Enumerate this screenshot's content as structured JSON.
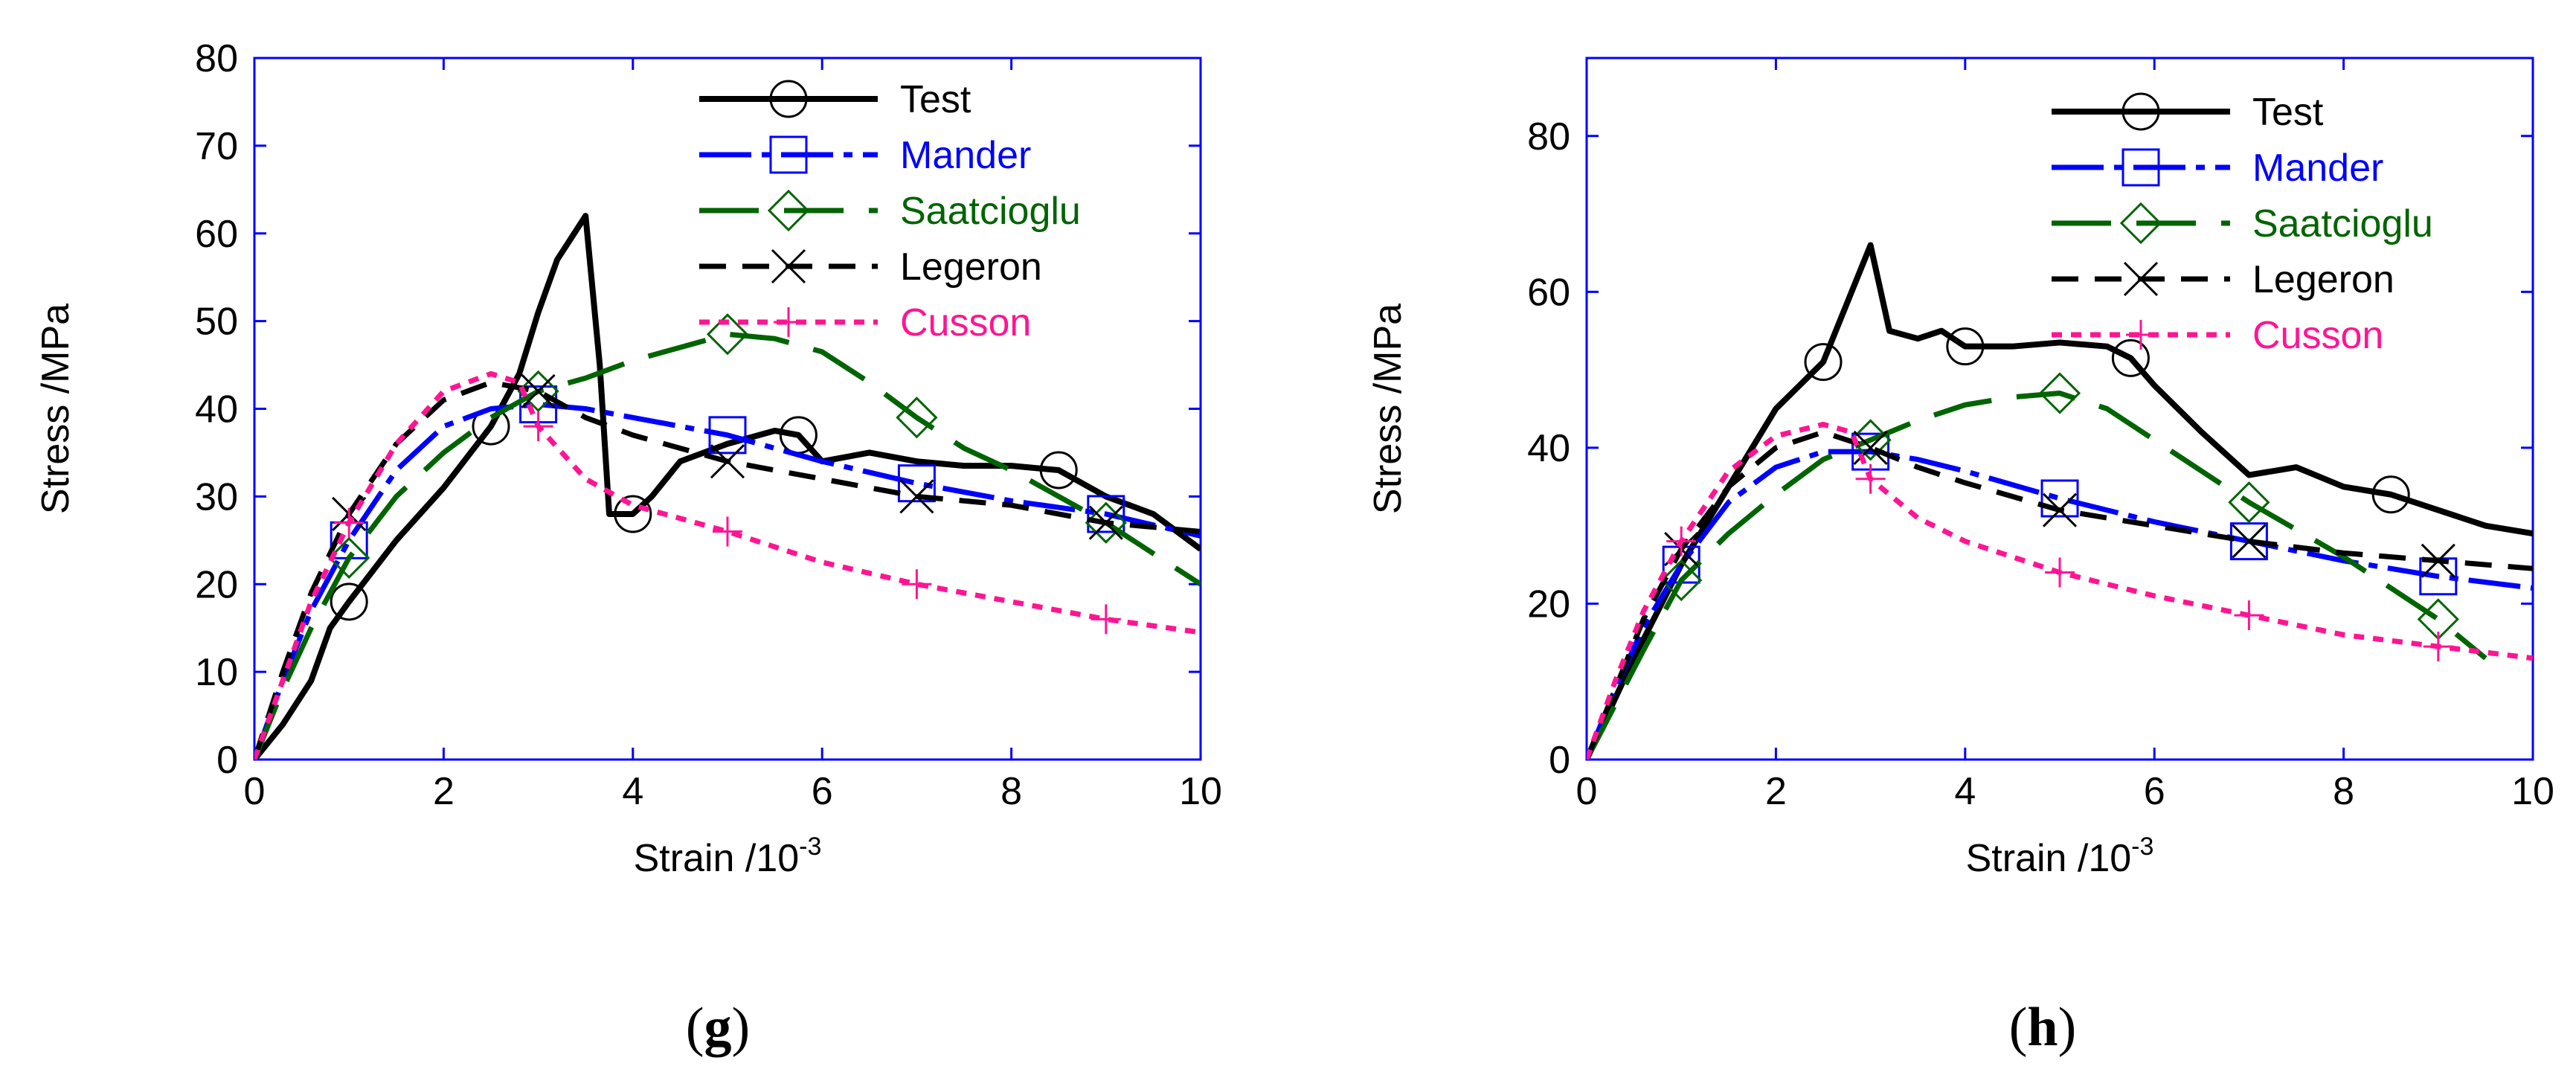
{
  "figure": {
    "panels": [
      "g",
      "h"
    ]
  },
  "chart_data": [
    {
      "panel": "g",
      "type": "line",
      "xlabel": "Strain /10",
      "xlabel_exponent": "-3",
      "ylabel": "Stress /MPa",
      "xlim": [
        0,
        10
      ],
      "ylim": [
        0,
        80
      ],
      "xticks": [
        0,
        2,
        4,
        6,
        8,
        10
      ],
      "yticks": [
        0,
        10,
        20,
        30,
        40,
        50,
        60,
        70,
        80
      ],
      "grid": false,
      "legend": "top-right",
      "series": [
        {
          "name": "Test",
          "color": "#000000",
          "style": "solid",
          "marker": "circle",
          "x": [
            0,
            0.3,
            0.6,
            0.8,
            1.0,
            1.5,
            2.0,
            2.5,
            2.8,
            3.0,
            3.2,
            3.5,
            3.65,
            3.75,
            4.0,
            4.2,
            4.5,
            5.0,
            5.5,
            5.75,
            6.0,
            6.5,
            7.0,
            7.5,
            8.0,
            8.5,
            9.0,
            9.5,
            10.0
          ],
          "y": [
            0,
            4,
            9,
            15,
            18,
            25,
            31,
            38,
            44,
            51,
            57,
            62,
            45,
            28,
            28,
            30,
            34,
            36,
            37.5,
            37,
            34,
            35,
            34,
            33.5,
            33.5,
            33,
            30,
            28,
            24
          ],
          "marker_x": [
            1.0,
            2.5,
            4.0,
            5.75,
            8.5
          ],
          "marker_y": [
            18,
            38,
            28,
            37,
            33
          ]
        },
        {
          "name": "Mander",
          "color": "#0000ff",
          "style": "dash-dot",
          "marker": "square",
          "x": [
            0,
            0.3,
            0.6,
            1.0,
            1.5,
            2.0,
            2.5,
            3.0,
            3.5,
            4.0,
            5.0,
            6.0,
            7.0,
            8.0,
            9.0,
            10.0
          ],
          "y": [
            0,
            9,
            17,
            25,
            33,
            38,
            40,
            40.5,
            40,
            39,
            37,
            34,
            31.5,
            29.5,
            28,
            25.5
          ],
          "marker_x": [
            1.0,
            3.0,
            5.0,
            7.0,
            9.0
          ],
          "marker_y": [
            25,
            40.5,
            37,
            31.5,
            28
          ]
        },
        {
          "name": "Saatcioglu",
          "color": "#006400",
          "style": "long-dash",
          "marker": "diamond",
          "x": [
            0,
            0.3,
            0.6,
            1.0,
            1.5,
            2.0,
            2.5,
            3.0,
            3.5,
            4.0,
            4.5,
            5.0,
            5.5,
            6.0,
            6.5,
            7.0,
            7.5,
            8.0,
            9.0,
            10.0
          ],
          "y": [
            0,
            8,
            15,
            23,
            30,
            35,
            39,
            42,
            43.5,
            45.5,
            47,
            48.5,
            48,
            46.5,
            43,
            39,
            35.5,
            33,
            27,
            20
          ],
          "marker_x": [
            1.0,
            3.0,
            5.0,
            7.0,
            9.0
          ],
          "marker_y": [
            23,
            42,
            48.5,
            39,
            27
          ]
        },
        {
          "name": "Legeron",
          "color": "#000000",
          "style": "dash",
          "marker": "x",
          "x": [
            0,
            0.3,
            0.6,
            1.0,
            1.5,
            2.0,
            2.5,
            3.0,
            3.5,
            4.0,
            5.0,
            6.0,
            7.0,
            8.0,
            9.0,
            10.0
          ],
          "y": [
            0,
            10,
            19,
            28,
            36,
            41,
            43,
            42,
            39,
            37,
            34,
            32,
            30,
            29,
            27,
            26
          ],
          "marker_x": [
            1.0,
            3.0,
            5.0,
            7.0,
            9.0
          ],
          "marker_y": [
            28,
            42,
            34,
            30,
            27
          ]
        },
        {
          "name": "Cusson",
          "color": "#ff1493",
          "style": "dotted",
          "marker": "plus",
          "x": [
            0,
            0.3,
            0.6,
            1.0,
            1.5,
            2.0,
            2.5,
            2.8,
            3.0,
            3.5,
            4.0,
            5.0,
            6.0,
            7.0,
            8.0,
            9.0,
            10.0
          ],
          "y": [
            0,
            9,
            18,
            27,
            36,
            42,
            44,
            43,
            38,
            32,
            29,
            26,
            22.5,
            20,
            18,
            16,
            14.5
          ],
          "marker_x": [
            1.0,
            3.0,
            5.0,
            7.0,
            9.0
          ],
          "marker_y": [
            27,
            38,
            26,
            20,
            16
          ]
        }
      ]
    },
    {
      "panel": "h",
      "type": "line",
      "xlabel": "Strain /10",
      "xlabel_exponent": "-3",
      "ylabel": "Stress /MPa",
      "xlim": [
        0,
        10
      ],
      "ylim": [
        0,
        90
      ],
      "xticks": [
        0,
        2,
        4,
        6,
        8,
        10
      ],
      "yticks": [
        0,
        20,
        40,
        60,
        80
      ],
      "grid": false,
      "legend": "top-right",
      "series": [
        {
          "name": "Test",
          "color": "#000000",
          "style": "solid",
          "marker": "circle",
          "x": [
            0,
            0.5,
            1.0,
            1.5,
            2.0,
            2.5,
            2.8,
            3.0,
            3.2,
            3.5,
            3.75,
            4.0,
            4.5,
            5.0,
            5.5,
            5.75,
            6.0,
            6.5,
            7.0,
            7.5,
            8.0,
            8.5,
            9.0,
            9.5,
            10.0
          ],
          "y": [
            0,
            13,
            25,
            35,
            45,
            51,
            60,
            66,
            55,
            54,
            55,
            53,
            53,
            53.5,
            53,
            51.5,
            48,
            42,
            36.5,
            37.5,
            35,
            34,
            32,
            30,
            29
          ],
          "marker_x": [
            2.5,
            4.0,
            5.75,
            8.5
          ],
          "marker_y": [
            51,
            53,
            51.5,
            34
          ]
        },
        {
          "name": "Mander",
          "color": "#0000ff",
          "style": "dash-dot",
          "marker": "square",
          "x": [
            0,
            0.3,
            0.6,
            1.0,
            1.5,
            2.0,
            2.5,
            3.0,
            3.5,
            4.0,
            5.0,
            6.0,
            7.0,
            8.0,
            9.0,
            10.0
          ],
          "y": [
            0,
            9,
            17,
            25,
            33,
            37.5,
            39.5,
            39.5,
            38.5,
            37,
            33.5,
            30.5,
            28,
            25.5,
            23.5,
            22
          ],
          "marker_x": [
            1.0,
            3.0,
            5.0,
            7.0,
            9.0
          ],
          "marker_y": [
            25,
            39.5,
            33.5,
            28,
            23.5
          ]
        },
        {
          "name": "Saatcioglu",
          "color": "#006400",
          "style": "long-dash",
          "marker": "diamond",
          "x": [
            0,
            0.3,
            0.6,
            1.0,
            1.5,
            2.0,
            2.5,
            3.0,
            3.5,
            4.0,
            4.5,
            5.0,
            5.5,
            6.0,
            6.5,
            7.0,
            8.0,
            9.0,
            9.5
          ],
          "y": [
            0,
            7,
            14,
            23,
            29,
            34,
            38.5,
            41,
            43.5,
            45.5,
            46.5,
            47,
            45,
            41,
            37,
            33,
            26,
            18,
            13
          ],
          "marker_x": [
            1.0,
            3.0,
            5.0,
            7.0,
            9.0
          ],
          "marker_y": [
            23,
            41,
            47,
            33,
            18
          ]
        },
        {
          "name": "Legeron",
          "color": "#000000",
          "style": "dash",
          "marker": "x",
          "x": [
            0,
            0.3,
            0.6,
            1.0,
            1.5,
            2.0,
            2.5,
            3.0,
            3.5,
            4.0,
            5.0,
            6.0,
            7.0,
            8.0,
            9.0,
            10.0
          ],
          "y": [
            0,
            9,
            18,
            27,
            35,
            40,
            42,
            40,
            37.5,
            35.5,
            32,
            30,
            28,
            26.5,
            25.5,
            24.5
          ],
          "marker_x": [
            1.0,
            3.0,
            5.0,
            7.0,
            9.0
          ],
          "marker_y": [
            27,
            40,
            32,
            28,
            25.5
          ]
        },
        {
          "name": "Cusson",
          "color": "#ff1493",
          "style": "dotted",
          "marker": "plus",
          "x": [
            0,
            0.3,
            0.6,
            1.0,
            1.5,
            2.0,
            2.5,
            2.8,
            3.0,
            3.5,
            4.0,
            5.0,
            6.0,
            7.0,
            8.0,
            9.0,
            10.0
          ],
          "y": [
            0,
            10,
            19,
            28,
            37,
            41.5,
            43,
            42,
            36,
            31,
            28,
            24,
            21,
            18.5,
            16,
            14.5,
            13
          ],
          "marker_x": [
            1.0,
            3.0,
            5.0,
            7.0,
            9.0
          ],
          "marker_y": [
            28,
            36,
            24,
            18.5,
            14.5
          ]
        }
      ]
    }
  ]
}
